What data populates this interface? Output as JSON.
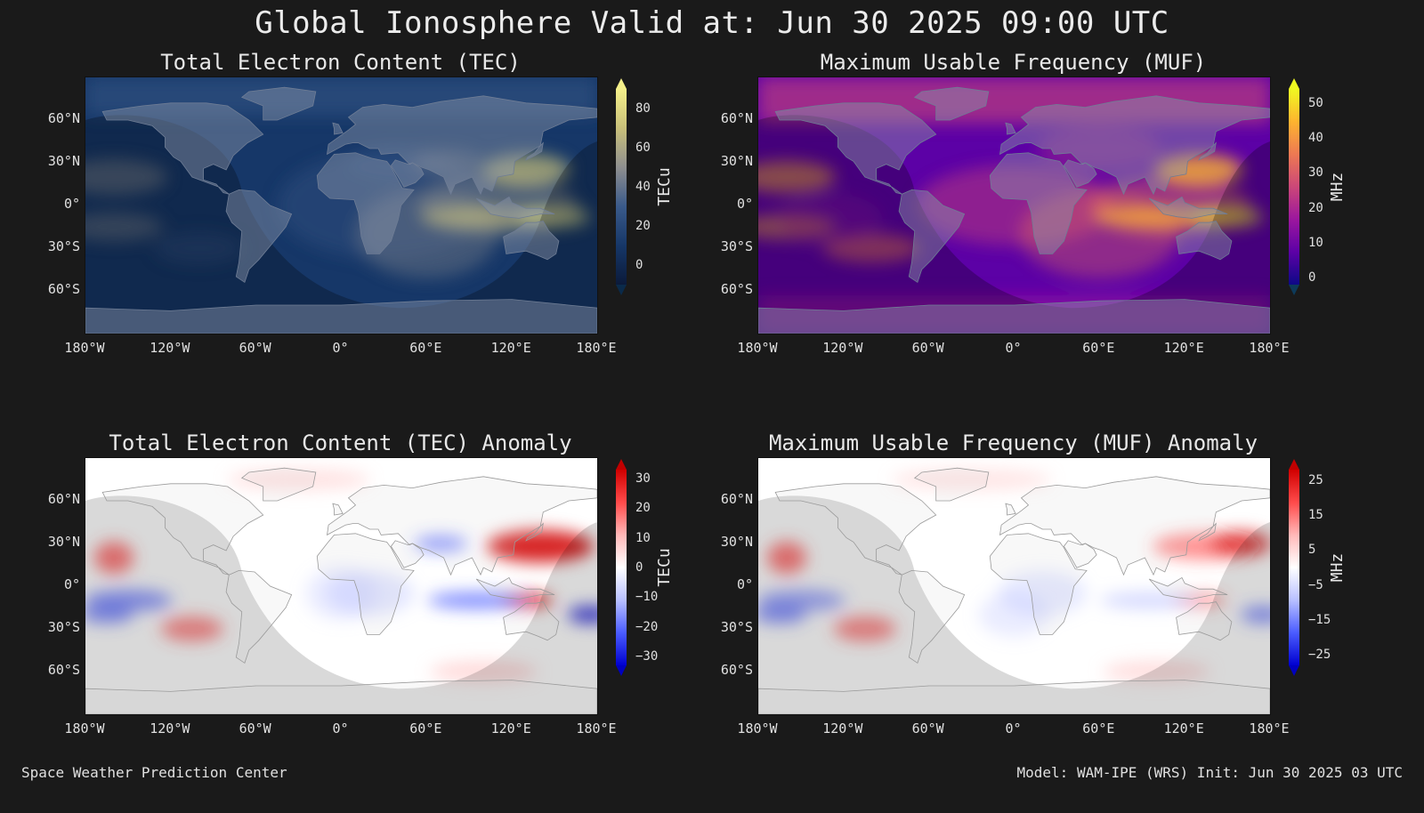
{
  "title": "Global Ionosphere Valid at: Jun 30 2025 09:00 UTC",
  "footer": {
    "left": "Space Weather Prediction Center",
    "right": "Model: WAM-IPE (WRS) Init: Jun 30 2025 03 UTC"
  },
  "lat_labels": [
    "60°N",
    "30°N",
    "0°",
    "30°S",
    "60°S"
  ],
  "lat_values": [
    60,
    30,
    0,
    -30,
    -60
  ],
  "lon_labels": [
    "180°W",
    "120°W",
    "60°W",
    "0°",
    "60°E",
    "120°E",
    "180°E"
  ],
  "lon_values": [
    -180,
    -120,
    -60,
    0,
    60,
    120,
    180
  ],
  "panels": [
    {
      "title": "Total Electron Content (TEC)",
      "unit": "TECu",
      "cb_ticks": [
        "80",
        "60",
        "40",
        "20",
        "0"
      ],
      "cb_values": [
        80,
        60,
        40,
        20,
        0
      ],
      "cb_range": [
        -10,
        90
      ],
      "colors": [
        "#0b1a3a",
        "#163768",
        "#3a5a8a",
        "#8f8f8f",
        "#c9c07a",
        "#f5f08a"
      ],
      "arrow_top": "#f5f08a",
      "arrow_bot": "#0a2a4a",
      "kind": "tec"
    },
    {
      "title": "Maximum Usable Frequency (MUF)",
      "unit": "MHz",
      "cb_ticks": [
        "50",
        "40",
        "30",
        "20",
        "10",
        "0"
      ],
      "cb_values": [
        50,
        40,
        30,
        20,
        10,
        0
      ],
      "cb_range": [
        -2,
        54
      ],
      "colors": [
        "#0d0887",
        "#5c01a6",
        "#9c179e",
        "#cc4778",
        "#ed7953",
        "#fdb42f",
        "#f0f921"
      ],
      "arrow_top": "#f0f921",
      "arrow_bot": "#0d3a5a",
      "kind": "muf"
    },
    {
      "title": "Total Electron Content (TEC) Anomaly",
      "unit": "TECu",
      "cb_ticks": [
        "30",
        "20",
        "10",
        "0",
        "−10",
        "−20",
        "−30"
      ],
      "cb_values": [
        30,
        20,
        10,
        0,
        -10,
        -20,
        -30
      ],
      "cb_range": [
        -33,
        33
      ],
      "colors": [
        "#0000d0",
        "#4a5cff",
        "#b8c0ff",
        "#ffffff",
        "#ffb8b8",
        "#ff4a4a",
        "#d00000"
      ],
      "arrow_top": "#c00000",
      "arrow_bot": "#0000c0",
      "kind": "tec_anom"
    },
    {
      "title": "Maximum Usable Frequency (MUF) Anomaly",
      "unit": "MHz",
      "cb_ticks": [
        "25",
        "15",
        "5",
        "−5",
        "−15",
        "−25"
      ],
      "cb_values": [
        25,
        15,
        5,
        -5,
        -15,
        -25
      ],
      "cb_range": [
        -28,
        28
      ],
      "colors": [
        "#0000d0",
        "#4a5cff",
        "#b8c0ff",
        "#ffffff",
        "#ffb8b8",
        "#ff4a4a",
        "#d00000"
      ],
      "arrow_top": "#c00000",
      "arrow_bot": "#0000c0",
      "kind": "muf_anom"
    }
  ]
}
